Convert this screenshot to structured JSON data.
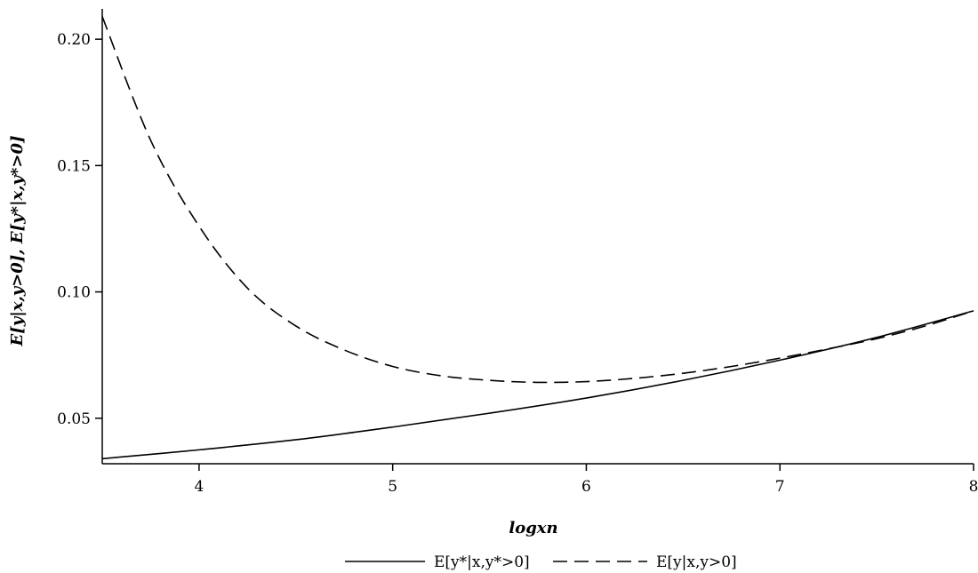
{
  "chart_data": {
    "type": "line",
    "xlabel": "logxn",
    "ylabel": "E[y|x,y>0], E[y*|x,y*>0]",
    "xlim": [
      3.5,
      8.0
    ],
    "ylim": [
      0.032,
      0.212
    ],
    "xticks": [
      4,
      5,
      6,
      7,
      8
    ],
    "xtick_labels": [
      "4",
      "5",
      "6",
      "7",
      "8"
    ],
    "yticks": [
      0.05,
      0.1,
      0.15,
      0.2
    ],
    "ytick_labels": [
      "0.05",
      "0.10",
      "0.15",
      "0.20"
    ],
    "grid": false,
    "legend_position": "bottom",
    "series": [
      {
        "name": "E[y*|x,y*>0]",
        "style": "solid",
        "color": "#000000",
        "x": [
          3.5,
          4.0,
          4.5,
          5.0,
          5.5,
          6.0,
          6.5,
          7.0,
          7.5,
          8.0
        ],
        "y": [
          0.034,
          0.0375,
          0.0415,
          0.0465,
          0.052,
          0.058,
          0.065,
          0.073,
          0.082,
          0.0925
        ]
      },
      {
        "name": "E[y|x,y>0]",
        "style": "dashed",
        "color": "#000000",
        "x": [
          3.5,
          3.75,
          4.0,
          4.25,
          4.5,
          4.75,
          5.0,
          5.25,
          5.5,
          5.75,
          6.0,
          6.25,
          6.5,
          6.75,
          7.0,
          7.25,
          7.5,
          7.75,
          8.0
        ],
        "y": [
          0.209,
          0.16,
          0.126,
          0.1015,
          0.0865,
          0.077,
          0.0705,
          0.0668,
          0.065,
          0.0642,
          0.0645,
          0.0658,
          0.0678,
          0.0705,
          0.0738,
          0.0775,
          0.0815,
          0.0865,
          0.0925
        ]
      }
    ]
  }
}
